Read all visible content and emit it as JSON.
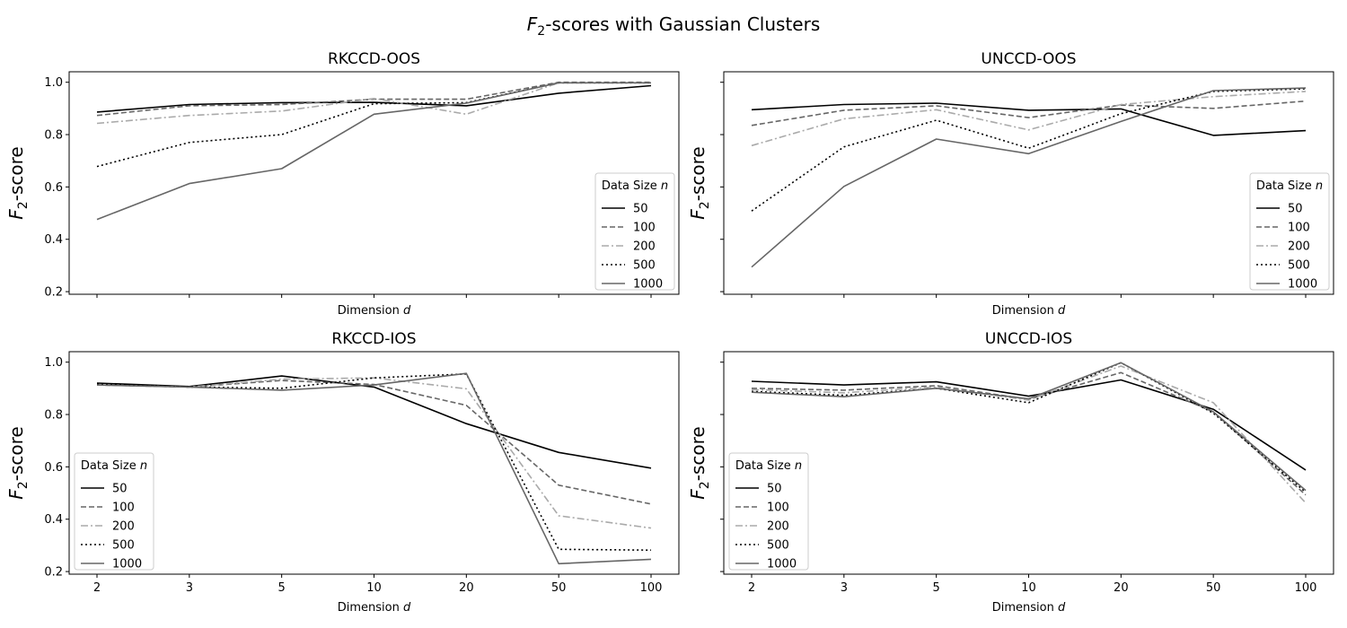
{
  "figure": {
    "title_prefix": "F",
    "title_sub": "2",
    "title_rest": "-scores with Gaussian Clusters"
  },
  "axis_labels": {
    "x_text": "Dimension ",
    "x_var": "d",
    "y_var": "F",
    "y_sub": "2",
    "y_rest": "-score"
  },
  "legend": {
    "title_text": "Data Size ",
    "title_var": "n"
  },
  "series_styles": [
    {
      "name": "50",
      "color": "#000000",
      "dash": ""
    },
    {
      "name": "100",
      "color": "#666666",
      "dash": "6,3"
    },
    {
      "name": "200",
      "color": "#aaaaaa",
      "dash": "8,3,2,3"
    },
    {
      "name": "500",
      "color": "#000000",
      "dash": "2,3"
    },
    {
      "name": "1000",
      "color": "#666666",
      "dash": ""
    }
  ],
  "chart_data": [
    {
      "type": "line",
      "title": "RKCCD-OOS",
      "categories": [
        "2",
        "3",
        "5",
        "10",
        "20",
        "50",
        "100"
      ],
      "ylim": [
        0.19,
        1.04
      ],
      "yticks": [
        "0.2",
        "0.4",
        "0.6",
        "0.8",
        "1.0"
      ],
      "show_y_ticklabels": true,
      "show_x_ticklabels": false,
      "legend_position": "lower-right",
      "series": [
        {
          "name": "50",
          "values": [
            0.886,
            0.915,
            0.922,
            0.923,
            0.91,
            0.958,
            0.987
          ]
        },
        {
          "name": "100",
          "values": [
            0.873,
            0.91,
            0.915,
            0.935,
            0.935,
            1.0,
            1.0
          ]
        },
        {
          "name": "200",
          "values": [
            0.843,
            0.873,
            0.89,
            0.938,
            0.878,
            0.998,
            0.998
          ]
        },
        {
          "name": "500",
          "values": [
            0.678,
            0.77,
            0.8,
            0.918,
            0.922,
            0.998,
            0.998
          ]
        },
        {
          "name": "1000",
          "values": [
            0.476,
            0.613,
            0.67,
            0.878,
            0.92,
            0.998,
            0.998
          ]
        }
      ]
    },
    {
      "type": "line",
      "title": "UNCCD-OOS",
      "categories": [
        "2",
        "3",
        "5",
        "10",
        "20",
        "50",
        "100"
      ],
      "ylim": [
        0.19,
        1.04
      ],
      "yticks": [
        "0.2",
        "0.4",
        "0.6",
        "0.8",
        "1.0"
      ],
      "show_y_ticklabels": false,
      "show_x_ticklabels": false,
      "legend_position": "lower-right",
      "series": [
        {
          "name": "50",
          "values": [
            0.895,
            0.915,
            0.92,
            0.893,
            0.898,
            0.797,
            0.815
          ]
        },
        {
          "name": "100",
          "values": [
            0.835,
            0.893,
            0.91,
            0.865,
            0.913,
            0.9,
            0.928
          ]
        },
        {
          "name": "200",
          "values": [
            0.758,
            0.86,
            0.895,
            0.818,
            0.915,
            0.945,
            0.965
          ]
        },
        {
          "name": "500",
          "values": [
            0.508,
            0.753,
            0.855,
            0.748,
            0.88,
            0.965,
            0.975
          ]
        },
        {
          "name": "1000",
          "values": [
            0.294,
            0.602,
            0.783,
            0.727,
            0.85,
            0.968,
            0.978
          ]
        }
      ]
    },
    {
      "type": "line",
      "title": "RKCCD-IOS",
      "categories": [
        "2",
        "3",
        "5",
        "10",
        "20",
        "50",
        "100"
      ],
      "ylim": [
        0.19,
        1.04
      ],
      "yticks": [
        "0.2",
        "0.4",
        "0.6",
        "0.8",
        "1.0"
      ],
      "show_y_ticklabels": true,
      "show_x_ticklabels": true,
      "legend_position": "lower-left",
      "series": [
        {
          "name": "50",
          "values": [
            0.92,
            0.907,
            0.947,
            0.905,
            0.765,
            0.655,
            0.595
          ]
        },
        {
          "name": "100",
          "values": [
            0.913,
            0.905,
            0.93,
            0.915,
            0.835,
            0.53,
            0.458
          ]
        },
        {
          "name": "200",
          "values": [
            0.913,
            0.905,
            0.935,
            0.94,
            0.898,
            0.413,
            0.366
          ]
        },
        {
          "name": "500",
          "values": [
            0.917,
            0.905,
            0.9,
            0.94,
            0.955,
            0.285,
            0.282
          ]
        },
        {
          "name": "1000",
          "values": [
            0.913,
            0.905,
            0.893,
            0.913,
            0.957,
            0.23,
            0.247
          ]
        }
      ]
    },
    {
      "type": "line",
      "title": "UNCCD-IOS",
      "categories": [
        "2",
        "3",
        "5",
        "10",
        "20",
        "50",
        "100"
      ],
      "ylim": [
        0.19,
        1.04
      ],
      "yticks": [
        "0.2",
        "0.4",
        "0.6",
        "0.8",
        "1.0"
      ],
      "show_y_ticklabels": false,
      "show_x_ticklabels": true,
      "legend_position": "lower-left",
      "series": [
        {
          "name": "50",
          "values": [
            0.927,
            0.913,
            0.925,
            0.87,
            0.932,
            0.82,
            0.588
          ]
        },
        {
          "name": "100",
          "values": [
            0.9,
            0.893,
            0.91,
            0.858,
            0.96,
            0.81,
            0.493
          ]
        },
        {
          "name": "200",
          "values": [
            0.895,
            0.883,
            0.905,
            0.855,
            0.985,
            0.845,
            0.462
          ]
        },
        {
          "name": "500",
          "values": [
            0.888,
            0.873,
            0.9,
            0.845,
            0.998,
            0.805,
            0.503
          ]
        },
        {
          "name": "1000",
          "values": [
            0.885,
            0.868,
            0.9,
            0.86,
            0.998,
            0.81,
            0.51
          ]
        }
      ]
    }
  ]
}
